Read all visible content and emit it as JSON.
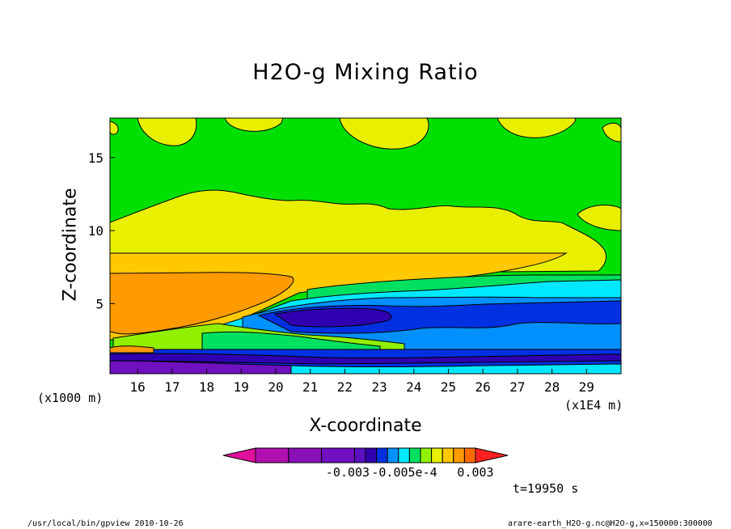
{
  "chart_data": {
    "type": "heatmap",
    "title": "H2O-g Mixing Ratio",
    "xlabel": "X-coordinate",
    "ylabel": "Z-coordinate",
    "x_unit": "(x1E4 m)",
    "y_unit": "(x1000 m)",
    "xlim": [
      15.2,
      30.0
    ],
    "ylim": [
      0.2,
      17.7
    ],
    "x_ticks": [
      16,
      17,
      18,
      19,
      20,
      21,
      22,
      23,
      24,
      25,
      26,
      27,
      28,
      29
    ],
    "y_ticks": [
      5,
      10,
      15
    ],
    "colorbar": {
      "tick_labels": [
        "-0.003",
        "-0.005e-4",
        "0.003"
      ],
      "colors": [
        "#e0109c",
        "#b010b0",
        "#8a10b8",
        "#7010c0",
        "#5a10c0",
        "#3000b0",
        "#0030e0",
        "#0090ff",
        "#00e8ff",
        "#00e060",
        "#90f000",
        "#e8f000",
        "#ffc800",
        "#ff9a00",
        "#ff6a00",
        "#ff2020"
      ]
    },
    "time_label": "t=19950 s"
  },
  "footer": {
    "left": "/usr/local/bin/gpview  2010-10-26",
    "right": "arare-earth_H2O-g.nc@H2O-g,x=150000:300000"
  }
}
